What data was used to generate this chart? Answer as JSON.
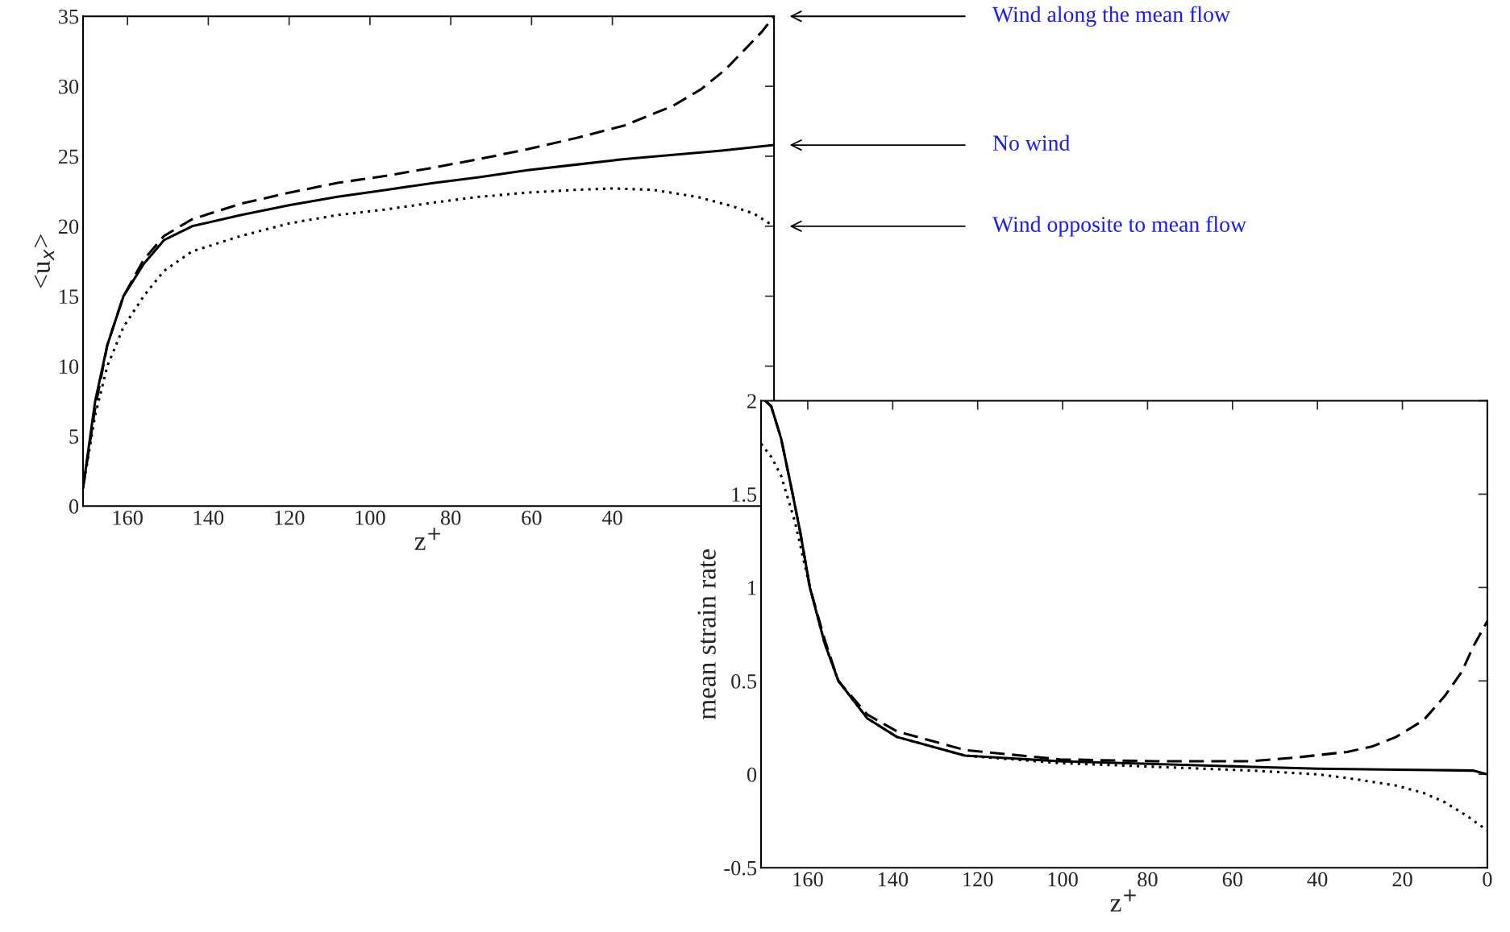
{
  "chart_data": [
    {
      "type": "line",
      "xlabel": "z$^{+}$",
      "ylabel": "<u$_{x}$>",
      "xlim": [
        171,
        0
      ],
      "ylim": [
        0,
        35
      ],
      "xticks": [
        160,
        140,
        120,
        100,
        80,
        60,
        40
      ],
      "yticks": [
        0,
        5,
        10,
        15,
        20,
        25,
        30,
        35
      ],
      "grid": false,
      "legend": false,
      "series": [
        {
          "name": "Wind along the mean flow",
          "color": "#000000",
          "line_style": "dashed",
          "x": [
            171,
            168,
            165,
            161,
            156,
            151,
            144,
            132,
            120,
            108,
            96,
            84,
            73,
            61,
            49,
            37,
            25,
            18,
            12,
            7,
            3,
            0
          ],
          "values": [
            1.3,
            7,
            11.5,
            15,
            17.6,
            19.3,
            20.5,
            21.6,
            22.4,
            23.1,
            23.6,
            24.2,
            24.8,
            25.5,
            26.3,
            27.2,
            28.6,
            29.8,
            31.2,
            32.7,
            33.9,
            35
          ]
        },
        {
          "name": "No wind",
          "color": "#000000",
          "line_style": "solid",
          "x": [
            171,
            168,
            165,
            161,
            156,
            151,
            144,
            132,
            120,
            108,
            96,
            84,
            73,
            61,
            49,
            37,
            25,
            13,
            0
          ],
          "values": [
            1.3,
            7.5,
            11.5,
            15,
            17.3,
            19,
            20,
            20.8,
            21.5,
            22.1,
            22.6,
            23.1,
            23.5,
            24,
            24.4,
            24.8,
            25.1,
            25.4,
            25.8
          ]
        },
        {
          "name": "Wind opposite to mean flow",
          "color": "#000000",
          "line_style": "dotted",
          "x": [
            171,
            168,
            165,
            161,
            156,
            151,
            144,
            132,
            120,
            108,
            96,
            84,
            73,
            61,
            49,
            40,
            30,
            19,
            10,
            5,
            0
          ],
          "values": [
            1.3,
            6.5,
            10,
            12.8,
            15,
            16.8,
            18.2,
            19.3,
            20.2,
            20.8,
            21.2,
            21.7,
            22.1,
            22.4,
            22.6,
            22.7,
            22.6,
            22.1,
            21.4,
            20.9,
            20
          ]
        }
      ]
    },
    {
      "type": "line",
      "xlabel": "z$^{+}$",
      "ylabel": "mean strain rate",
      "xlim": [
        171,
        0
      ],
      "ylim": [
        -0.5,
        2
      ],
      "xticks": [
        160,
        140,
        120,
        100,
        80,
        60,
        40,
        20,
        0
      ],
      "yticks": [
        -0.5,
        0,
        0.5,
        1,
        1.5,
        2
      ],
      "grid": false,
      "legend": false,
      "series": [
        {
          "color": "#000000",
          "line_style": "dashed",
          "x": [
            170,
            168.6,
            166.3,
            164,
            161.8,
            159.5,
            156,
            152.8,
            146,
            139,
            123,
            100.7,
            78,
            55.5,
            45,
            33,
            27,
            21.5,
            15,
            10,
            6,
            3.4,
            0
          ],
          "values": [
            2,
            1.97,
            1.8,
            1.55,
            1.3,
            1.0,
            0.72,
            0.5,
            0.32,
            0.23,
            0.13,
            0.08,
            0.07,
            0.07,
            0.09,
            0.12,
            0.15,
            0.2,
            0.29,
            0.42,
            0.55,
            0.68,
            0.82
          ]
        },
        {
          "color": "#000000",
          "line_style": "solid",
          "x": [
            170,
            168.6,
            166.3,
            164,
            161.8,
            159.5,
            156,
            152.8,
            146,
            139,
            123,
            100.7,
            78,
            55.5,
            40,
            21.5,
            10,
            3.4,
            0
          ],
          "values": [
            2,
            1.97,
            1.8,
            1.55,
            1.3,
            1.0,
            0.7,
            0.5,
            0.3,
            0.2,
            0.1,
            0.07,
            0.055,
            0.04,
            0.03,
            0.025,
            0.022,
            0.02,
            0
          ]
        },
        {
          "color": "#000000",
          "line_style": "dotted",
          "x": [
            171,
            168.6,
            166.3,
            163,
            159.5,
            156,
            152.8,
            146,
            139,
            123,
            100.7,
            78,
            55.5,
            40,
            32.9,
            21.5,
            15,
            10,
            5,
            0
          ],
          "values": [
            1.77,
            1.7,
            1.6,
            1.35,
            1.0,
            0.7,
            0.5,
            0.3,
            0.2,
            0.1,
            0.06,
            0.04,
            0.02,
            0.0,
            -0.02,
            -0.06,
            -0.1,
            -0.15,
            -0.22,
            -0.3
          ]
        }
      ]
    }
  ]
}
